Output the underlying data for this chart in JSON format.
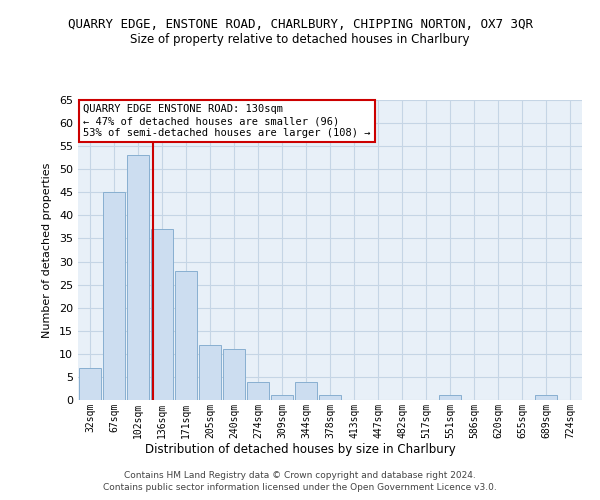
{
  "title": "QUARRY EDGE, ENSTONE ROAD, CHARLBURY, CHIPPING NORTON, OX7 3QR",
  "subtitle": "Size of property relative to detached houses in Charlbury",
  "xlabel": "Distribution of detached houses by size in Charlbury",
  "ylabel": "Number of detached properties",
  "bar_labels": [
    "32sqm",
    "67sqm",
    "102sqm",
    "136sqm",
    "171sqm",
    "205sqm",
    "240sqm",
    "274sqm",
    "309sqm",
    "344sqm",
    "378sqm",
    "413sqm",
    "447sqm",
    "482sqm",
    "517sqm",
    "551sqm",
    "586sqm",
    "620sqm",
    "655sqm",
    "689sqm",
    "724sqm"
  ],
  "bar_values": [
    7,
    45,
    53,
    37,
    28,
    12,
    11,
    4,
    1,
    4,
    1,
    0,
    0,
    0,
    0,
    1,
    0,
    0,
    0,
    1,
    0
  ],
  "bar_color": "#ccddf0",
  "bar_edge_color": "#88afd0",
  "grid_color": "#c5d5e5",
  "bg_color": "#e8f0f8",
  "property_line_x": 2.62,
  "property_line_color": "#cc0000",
  "annotation_text": "QUARRY EDGE ENSTONE ROAD: 130sqm\n← 47% of detached houses are smaller (96)\n53% of semi-detached houses are larger (108) →",
  "annotation_box_color": "#ffffff",
  "annotation_box_edge": "#cc0000",
  "ylim": [
    0,
    65
  ],
  "yticks": [
    0,
    5,
    10,
    15,
    20,
    25,
    30,
    35,
    40,
    45,
    50,
    55,
    60,
    65
  ],
  "footer_line1": "Contains HM Land Registry data © Crown copyright and database right 2024.",
  "footer_line2": "Contains public sector information licensed under the Open Government Licence v3.0."
}
